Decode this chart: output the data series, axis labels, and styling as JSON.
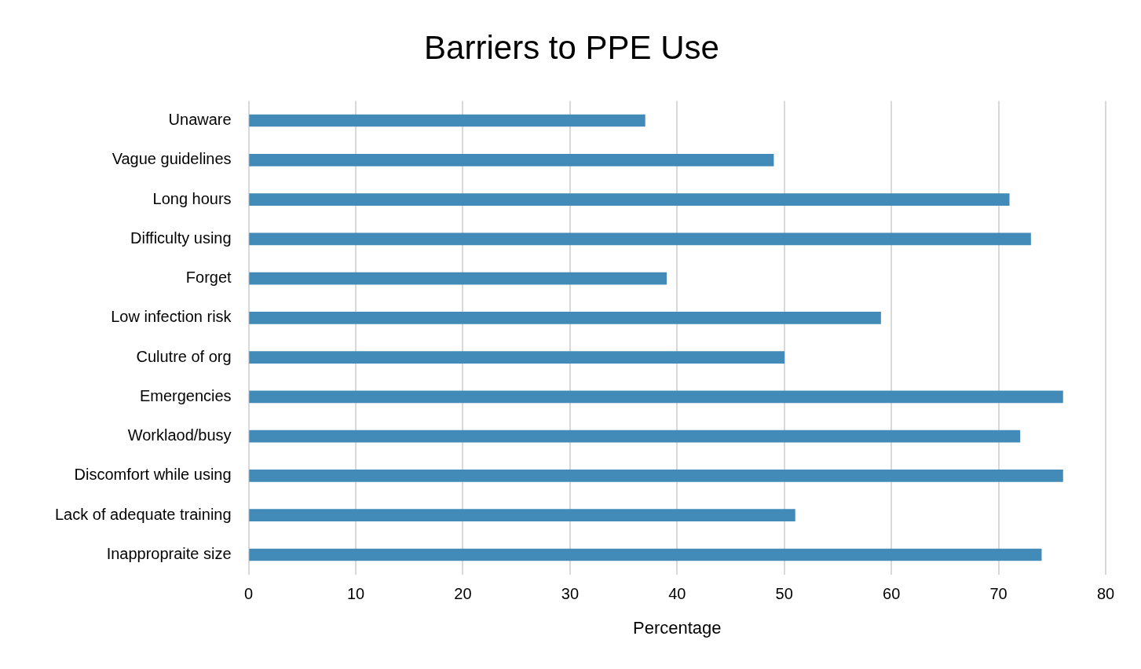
{
  "chart_data": {
    "type": "bar",
    "orientation": "horizontal",
    "title": "Barriers to PPE Use",
    "xlabel": "Percentage",
    "categories": [
      "Unaware",
      "Vague guidelines",
      "Long hours",
      "Difficulty using",
      "Forget",
      "Low infection risk",
      "Culutre of org",
      "Emergencies",
      "Worklaod/busy",
      "Discomfort while using",
      "Lack of adequate training",
      "Inappropraite size"
    ],
    "values": [
      37,
      49,
      71,
      73,
      39,
      59,
      50,
      76,
      72,
      76,
      51,
      74
    ],
    "color": "#428bb8",
    "xlim": [
      0,
      80
    ],
    "xticks": [
      0,
      10,
      20,
      30,
      40,
      50,
      60,
      70,
      80
    ],
    "grid": "x",
    "legend": false
  }
}
